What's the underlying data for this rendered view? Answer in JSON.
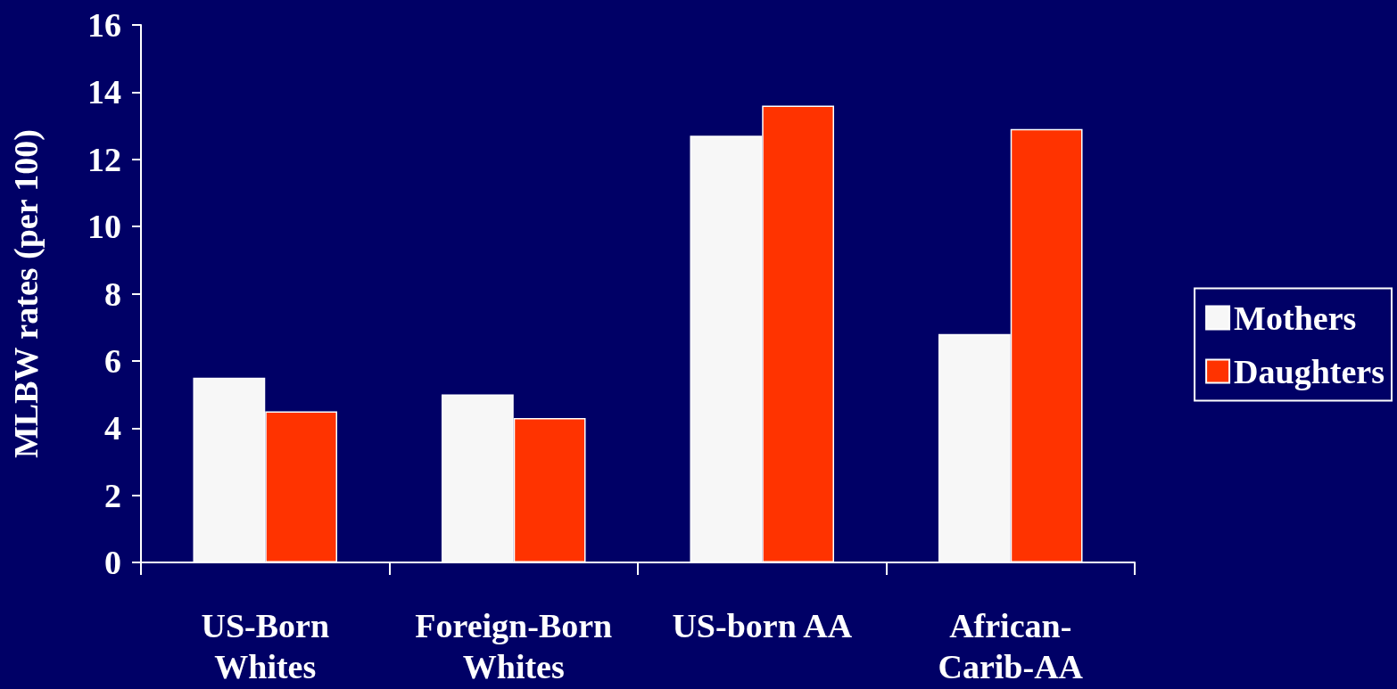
{
  "chart_data": {
    "type": "bar",
    "ylabel": "MLBW rates (per 100)",
    "categories": [
      "US-Born Whites",
      "Foreign-Born Whites",
      "US-born AA",
      "African-Carib-AA"
    ],
    "series": [
      {
        "name": "Mothers",
        "color": "#f7f7f7",
        "values": [
          5.5,
          5.0,
          12.7,
          6.8
        ]
      },
      {
        "name": "Daughters",
        "color": "#ff3300",
        "values": [
          4.5,
          4.3,
          13.6,
          12.9
        ]
      }
    ],
    "ylim": [
      0,
      16
    ],
    "yticks": [
      0,
      2,
      4,
      6,
      8,
      10,
      12,
      14,
      16
    ],
    "grid": false,
    "legend": "right"
  }
}
